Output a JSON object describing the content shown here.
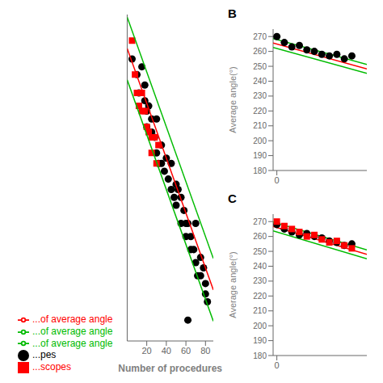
{
  "chart_data": [
    {
      "type": "scatter",
      "xlabel": "Number of procedures",
      "xlim": [
        0,
        88
      ],
      "xticks": [
        20,
        40,
        60,
        80
      ],
      "ylim": [
        160,
        285
      ],
      "tick_labels": "x",
      "legend": "bottom",
      "series": [
        {
          "name": "...pes",
          "type": "scatter",
          "marker": "circle",
          "color": "#000000",
          "x": [
            5,
            10,
            12,
            15,
            18,
            18,
            20,
            20,
            22,
            25,
            25,
            28,
            30,
            30,
            32,
            35,
            35,
            38,
            40,
            42,
            45,
            45,
            48,
            50,
            50,
            52,
            55,
            55,
            58,
            60,
            60,
            62,
            65,
            65,
            68,
            70,
            70,
            72,
            75,
            75,
            78,
            80,
            80,
            82,
            62
          ],
          "values": [
            268,
            262,
            255,
            265,
            258,
            252,
            248,
            242,
            250,
            245,
            240,
            238,
            232,
            245,
            228,
            235,
            228,
            225,
            230,
            222,
            228,
            218,
            215,
            220,
            212,
            218,
            205,
            215,
            210,
            205,
            200,
            205,
            200,
            195,
            195,
            190,
            205,
            185,
            192,
            185,
            188,
            182,
            178,
            175,
            168
          ]
        },
        {
          "name": "...scopes",
          "type": "scatter",
          "marker": "square",
          "color": "#FF0000",
          "x": [
            5,
            8,
            10,
            12,
            15,
            15,
            18,
            20,
            22,
            25,
            25,
            28,
            30,
            32
          ],
          "values": [
            275,
            262,
            255,
            250,
            255,
            248,
            248,
            242,
            240,
            238,
            232,
            238,
            228,
            235
          ]
        },
        {
          "name": "...of average angle",
          "type": "line",
          "color": "#FF0000",
          "x": [
            0,
            88
          ],
          "values": [
            272,
            179.6
          ]
        },
        {
          "name": "...of average angle",
          "type": "line",
          "color": "#00BB00",
          "x": [
            0,
            88
          ],
          "values": [
            284,
            191.6
          ]
        },
        {
          "name": "...of average angle",
          "type": "line",
          "color": "#00BB00",
          "x": [
            0,
            88
          ],
          "values": [
            260,
            167.6
          ]
        }
      ]
    },
    {
      "type": "scatter",
      "title": "B",
      "ylabel": "Average angle(°)",
      "xlim": [
        -0.5,
        12
      ],
      "xticks": [
        0
      ],
      "ylim": [
        180,
        275
      ],
      "yticks": [
        180,
        190,
        200,
        210,
        220,
        230,
        240,
        250,
        260,
        270
      ],
      "series": [
        {
          "type": "line",
          "color": "#00BB00",
          "x": [
            -0.5,
            12
          ],
          "values": [
            268.7,
            251.2
          ]
        },
        {
          "type": "line",
          "color": "#00BB00",
          "x": [
            -0.5,
            12
          ],
          "values": [
            262.7,
            245.2
          ]
        },
        {
          "type": "line",
          "color": "#FF0000",
          "x": [
            -0.5,
            12
          ],
          "values": [
            265.7,
            248.2
          ]
        },
        {
          "type": "scatter",
          "marker": "circle",
          "color": "#000000",
          "x": [
            0,
            1,
            2,
            3,
            4,
            5,
            6,
            7,
            8,
            9,
            10
          ],
          "values": [
            270,
            266,
            263,
            264,
            261,
            260,
            258,
            257,
            258,
            255,
            257
          ]
        }
      ]
    },
    {
      "type": "scatter",
      "title": "C",
      "ylabel": "Average angle(°)",
      "xlim": [
        -0.5,
        12
      ],
      "xticks": [
        0
      ],
      "ylim": [
        180,
        275
      ],
      "yticks": [
        180,
        190,
        200,
        210,
        220,
        230,
        240,
        250,
        260,
        270
      ],
      "series": [
        {
          "type": "line",
          "color": "#00BB00",
          "x": [
            -0.5,
            12
          ],
          "values": [
            269.75,
            251
          ]
        },
        {
          "type": "line",
          "color": "#00BB00",
          "x": [
            -0.5,
            12
          ],
          "values": [
            263.75,
            245
          ]
        },
        {
          "type": "line",
          "color": "#FF0000",
          "x": [
            -0.5,
            12
          ],
          "values": [
            266.75,
            248
          ]
        },
        {
          "type": "scatter",
          "marker": "circle",
          "color": "#000000",
          "x": [
            0,
            1,
            2,
            3,
            4,
            5,
            6,
            7,
            8,
            9,
            10
          ],
          "values": [
            268,
            265,
            263,
            261,
            262,
            260,
            259,
            257,
            256,
            254,
            255
          ]
        },
        {
          "type": "scatter",
          "marker": "square",
          "color": "#FF0000",
          "x": [
            0,
            1,
            2,
            3,
            4,
            5,
            6,
            7,
            8,
            9,
            10
          ],
          "values": [
            270,
            267,
            265,
            263,
            260,
            261,
            258,
            256,
            257,
            254,
            252
          ]
        }
      ]
    }
  ]
}
